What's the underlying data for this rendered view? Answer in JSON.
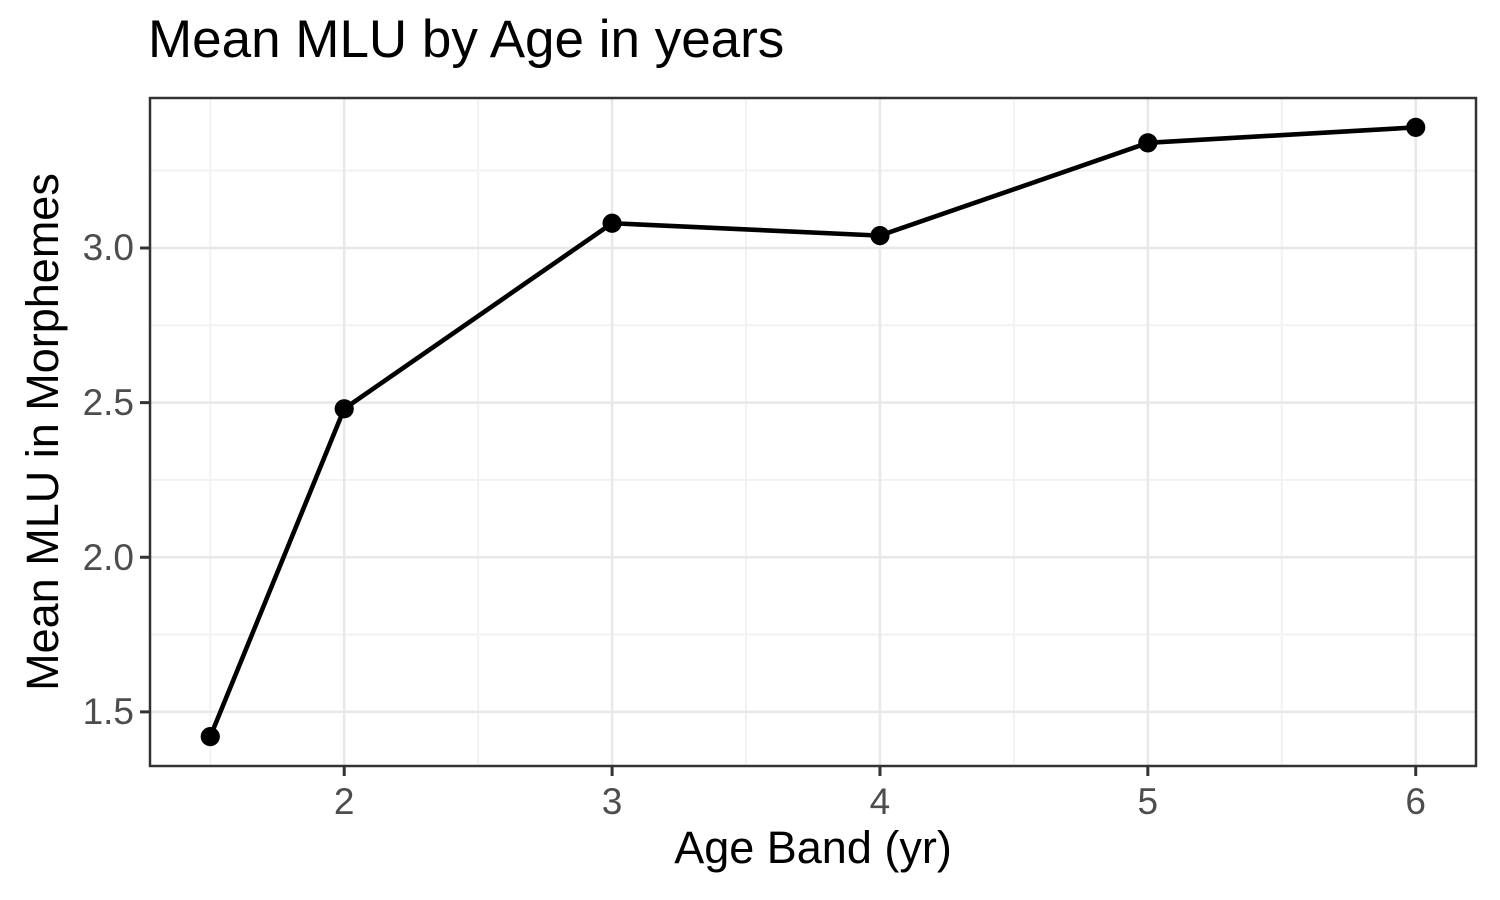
{
  "chart_data": {
    "type": "line",
    "title": "Mean MLU by Age in years",
    "xlabel": "Age Band (yr)",
    "ylabel": "Mean MLU in Morphemes",
    "series": [
      {
        "name": "Mean MLU",
        "x": [
          1.5,
          2,
          3,
          4,
          5,
          6
        ],
        "y": [
          1.42,
          2.48,
          3.08,
          3.04,
          3.34,
          3.39
        ]
      }
    ],
    "xlim": [
      1.275,
      6.225
    ],
    "ylim": [
      1.325,
      3.485
    ],
    "x_major_ticks": [
      2,
      3,
      4,
      5,
      6
    ],
    "x_tick_labels": [
      "2",
      "3",
      "4",
      "5",
      "6"
    ],
    "x_minor_gridlines": [
      1.5,
      2.5,
      3.5,
      4.5,
      5.5
    ],
    "y_major_ticks": [
      1.5,
      2.0,
      2.5,
      3.0
    ],
    "y_tick_labels": [
      "1.5",
      "2.0",
      "2.5",
      "3.0"
    ],
    "y_minor_gridlines": [
      1.75,
      2.25,
      2.75,
      3.25
    ],
    "grid": true,
    "legend": "none",
    "style": {
      "background": "#ffffff",
      "panel_background": "#ffffff",
      "panel_border": "#333333",
      "grid_major": "#e8e8e8",
      "grid_minor": "#f2f2f2",
      "line_color": "#000000",
      "point_color": "#000000",
      "tick_mark_color": "#333333",
      "tick_label_color": "#4d4d4d",
      "text_color": "#000000"
    }
  }
}
